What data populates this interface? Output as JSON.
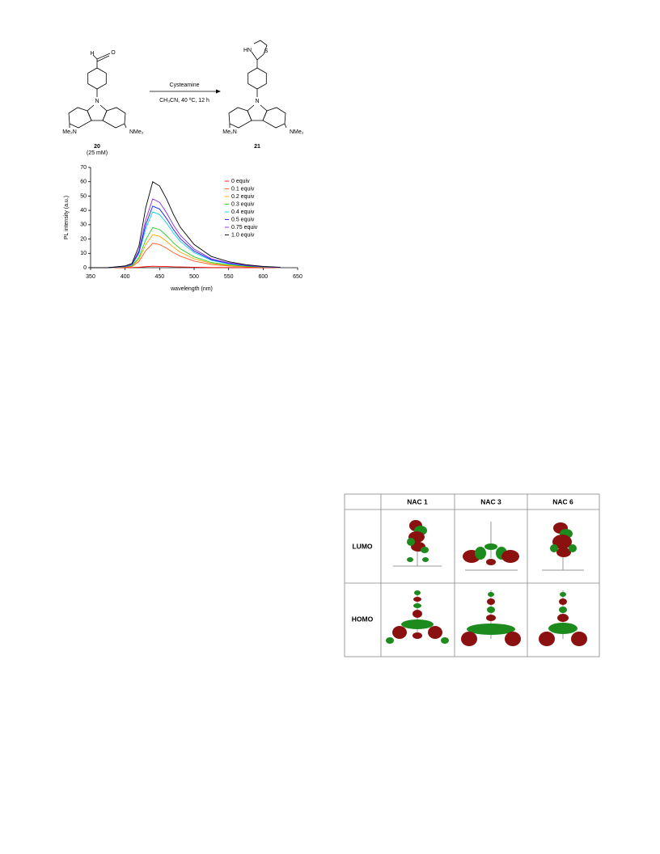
{
  "scheme": {
    "reagent": "Cysteamine",
    "conditions": "CH₃CN, 40 ºC, 12 h",
    "reactant": {
      "aldehyde_h": "H",
      "aldehyde_o": "O",
      "n": "N",
      "left_amine": "Me₂N",
      "right_amine": "NMe₂",
      "number": "20",
      "note": "(25 mM)"
    },
    "product": {
      "hn": "HN",
      "s": "S",
      "n": "N",
      "left_amine": "Me₂N",
      "right_amine": "NMe₂",
      "number": "21"
    }
  },
  "chart_data": {
    "type": "line",
    "x_label": "wavelength (nm)",
    "y_label": "PL intensity (a.u.)",
    "x": [
      350,
      375,
      400,
      410,
      420,
      430,
      440,
      450,
      460,
      470,
      480,
      500,
      525,
      550,
      575,
      600,
      625
    ],
    "xlim": [
      350,
      650
    ],
    "xticks": [
      350,
      400,
      450,
      500,
      550,
      600,
      650
    ],
    "ylim": [
      0,
      70
    ],
    "yticks": [
      0,
      10,
      20,
      30,
      40,
      50,
      60,
      70
    ],
    "legend": "upper right",
    "series": [
      {
        "name": "0 equiv",
        "color": "#ff0000",
        "values": [
          0,
          0,
          0,
          0.1,
          0.3,
          0.7,
          1,
          0.9,
          0.8,
          0.6,
          0.5,
          0.3,
          0.1,
          0.1,
          0,
          0,
          0
        ]
      },
      {
        "name": "0.1 equiv",
        "color": "#ff5a1f",
        "values": [
          0,
          0,
          0.3,
          0.9,
          4.3,
          11.9,
          17,
          16.2,
          13.6,
          10.5,
          8,
          4.6,
          2.2,
          1.2,
          0.6,
          0.3,
          0.1
        ]
      },
      {
        "name": "0.2 equiv",
        "color": "#ffa500",
        "values": [
          0,
          0,
          0.5,
          1.2,
          5.8,
          16.1,
          23,
          21.9,
          18.4,
          14.3,
          10.8,
          6.2,
          3,
          1.6,
          0.8,
          0.3,
          0.1
        ]
      },
      {
        "name": "0.3 equiv",
        "color": "#22cc22",
        "values": [
          0,
          0,
          0.6,
          1.4,
          7,
          19.6,
          28,
          26.6,
          22.4,
          17.4,
          13.2,
          7.6,
          3.6,
          2,
          1,
          0.4,
          0.1
        ]
      },
      {
        "name": "0.4 equiv",
        "color": "#00d0e0",
        "values": [
          0,
          0,
          0.8,
          2,
          9.8,
          27.3,
          39,
          37.1,
          31.2,
          24.2,
          18.3,
          10.5,
          5.1,
          2.7,
          1.4,
          0.6,
          0.2
        ]
      },
      {
        "name": "0.5 equiv",
        "color": "#1a1aff",
        "values": [
          0,
          0,
          0.9,
          2.2,
          10.8,
          30.1,
          43,
          40.9,
          34.4,
          26.7,
          20.2,
          11.6,
          5.6,
          3,
          1.5,
          0.6,
          0.2
        ]
      },
      {
        "name": "0.75 equiv",
        "color": "#8a2be2",
        "values": [
          0,
          0,
          1,
          2.4,
          12,
          33.6,
          48,
          45.6,
          38.4,
          29.8,
          22.6,
          13,
          6.2,
          3.4,
          1.7,
          0.7,
          0.2
        ]
      },
      {
        "name": "1.0 equiv",
        "color": "#000000",
        "values": [
          0,
          0,
          1.2,
          3,
          15,
          42,
          60,
          57,
          48,
          37.2,
          28.2,
          16.2,
          7.8,
          4.2,
          2.1,
          0.9,
          0.3
        ]
      }
    ]
  },
  "table": {
    "header": [
      "NAC 1",
      "NAC 3",
      "NAC 6"
    ],
    "rows": [
      "LUMO",
      "HOMO"
    ]
  }
}
